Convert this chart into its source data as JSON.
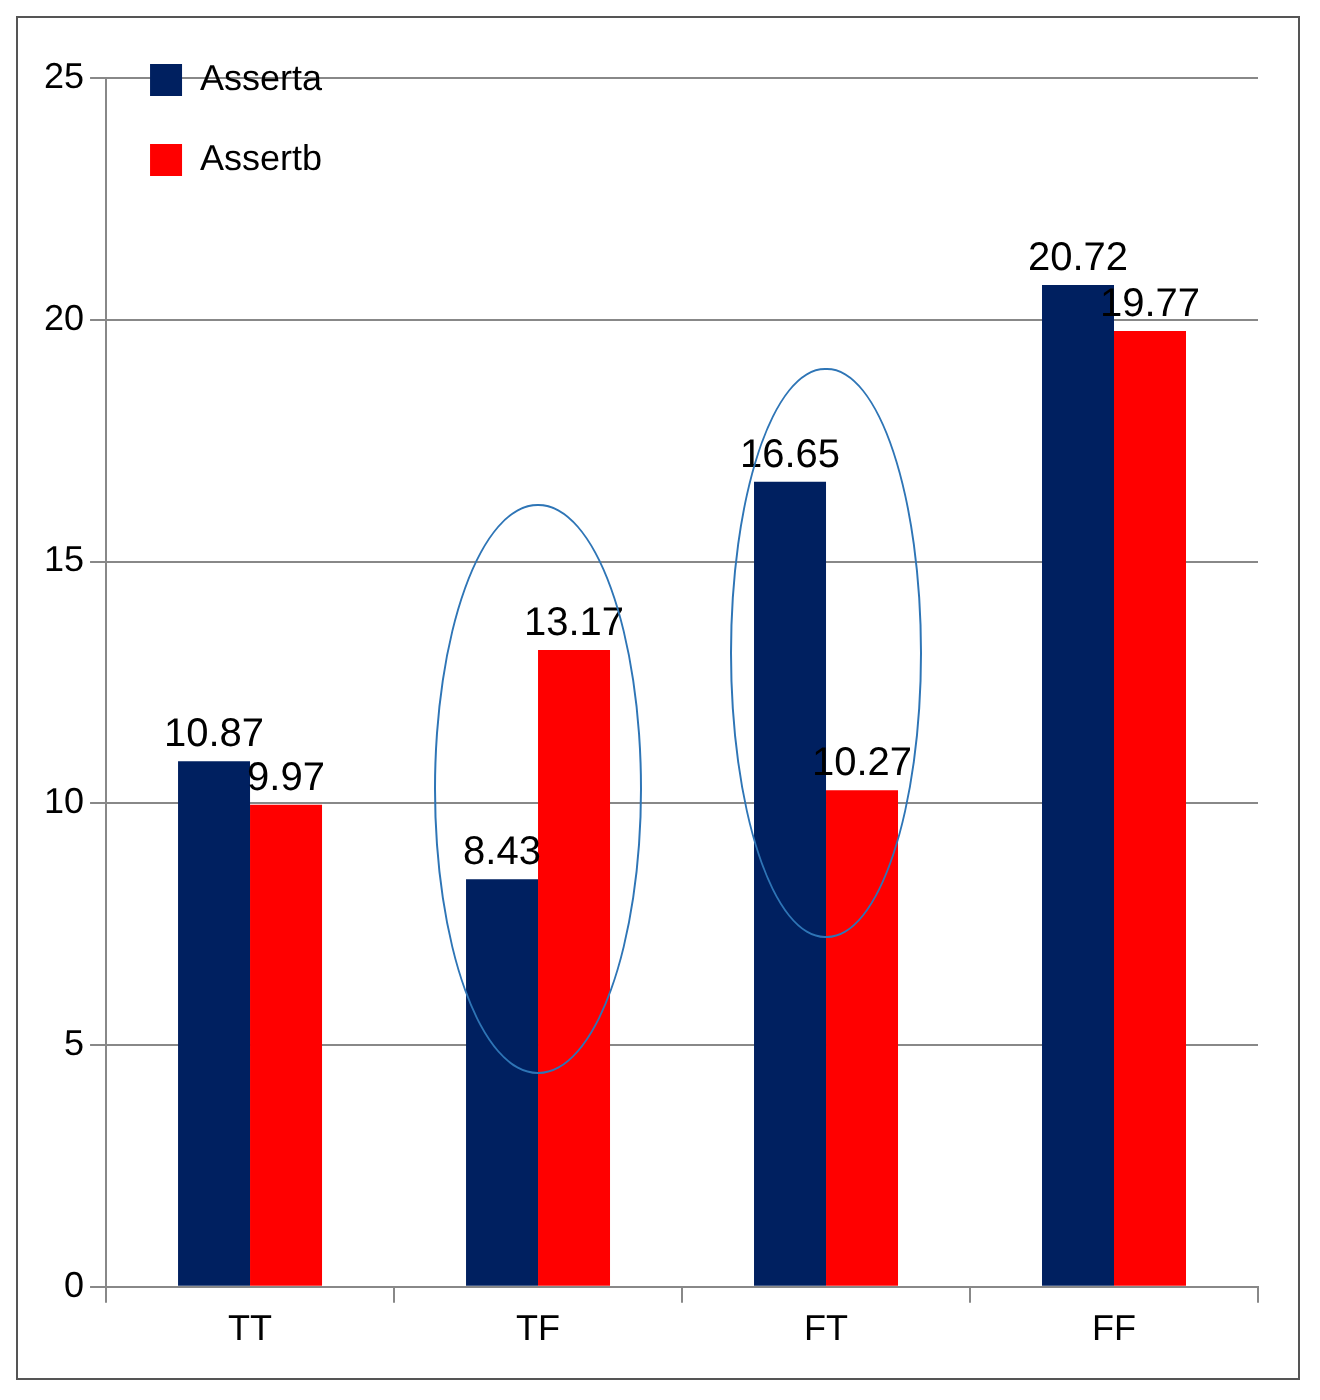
{
  "chart_data": {
    "type": "bar",
    "categories": [
      "TT",
      "TF",
      "FT",
      "FF"
    ],
    "series": [
      {
        "name": "Asserta",
        "color": "#002060",
        "values": [
          10.87,
          8.43,
          16.65,
          20.72
        ]
      },
      {
        "name": "Assertb",
        "color": "#ff0000",
        "values": [
          9.97,
          13.17,
          10.27,
          19.77
        ]
      }
    ],
    "ylim": [
      0,
      25
    ],
    "yticks": [
      0,
      5,
      10,
      15,
      20,
      25
    ],
    "grid": "y",
    "legend": "top left",
    "data_labels": true
  }
}
